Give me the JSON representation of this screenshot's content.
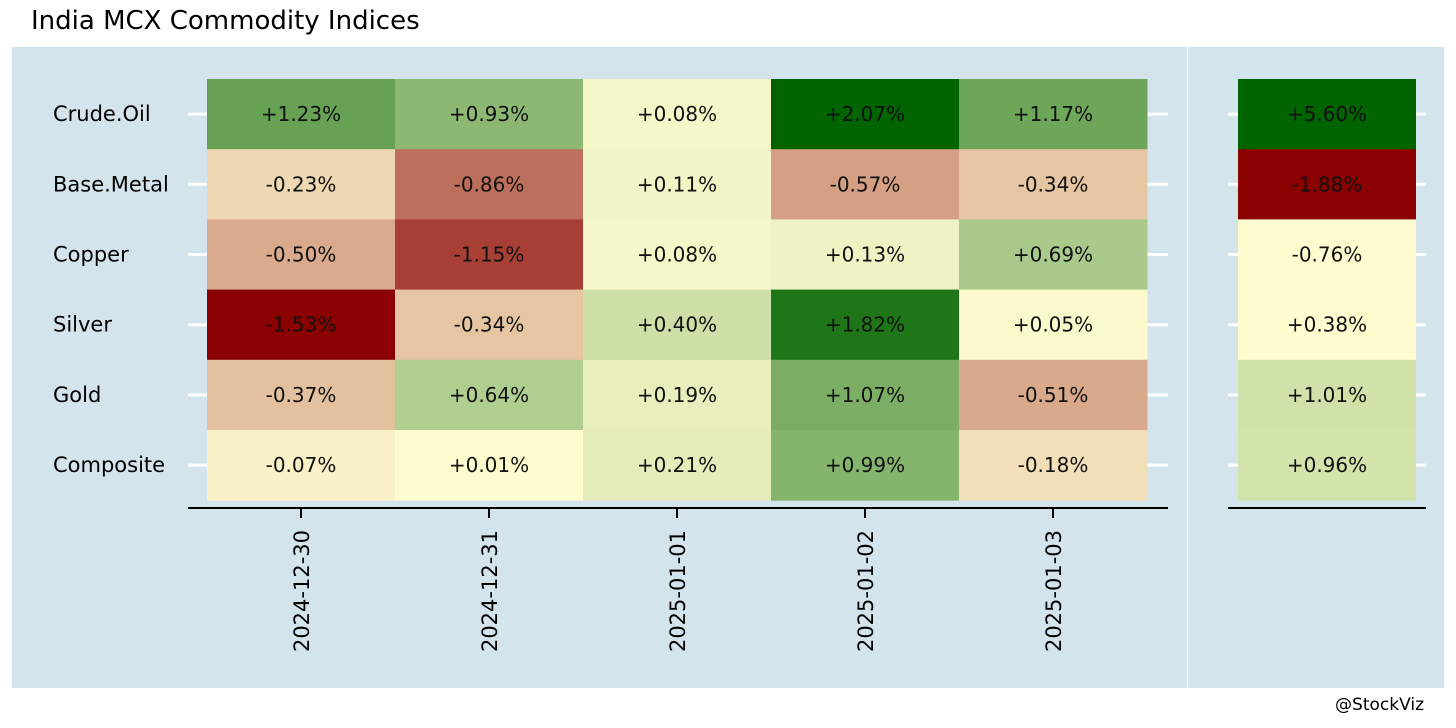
{
  "chart_data": {
    "type": "heatmap",
    "title": "India MCX Commodity Indices",
    "credit": "@StockViz",
    "rows": [
      "Crude.Oil",
      "Base.Metal",
      "Copper",
      "Silver",
      "Gold",
      "Composite"
    ],
    "columns": [
      "2024-12-30",
      "2024-12-31",
      "2025-01-01",
      "2025-01-02",
      "2025-01-03"
    ],
    "values": [
      [
        1.23,
        0.93,
        0.08,
        2.07,
        1.17
      ],
      [
        -0.23,
        -0.86,
        0.11,
        -0.57,
        -0.34
      ],
      [
        -0.5,
        -1.15,
        0.08,
        0.13,
        0.69
      ],
      [
        -1.53,
        -0.34,
        0.4,
        1.82,
        0.05
      ],
      [
        -0.37,
        0.64,
        0.19,
        1.07,
        -0.51
      ],
      [
        -0.07,
        0.01,
        0.21,
        0.99,
        -0.18
      ]
    ],
    "summary": {
      "values": [
        5.6,
        -1.88,
        -0.76,
        0.38,
        1.01,
        0.96
      ]
    },
    "color_scale": {
      "low": "#8b0000",
      "mid": "#fffdd0",
      "high": "#006400"
    },
    "value_format": "signed percent, 2 decimals"
  }
}
